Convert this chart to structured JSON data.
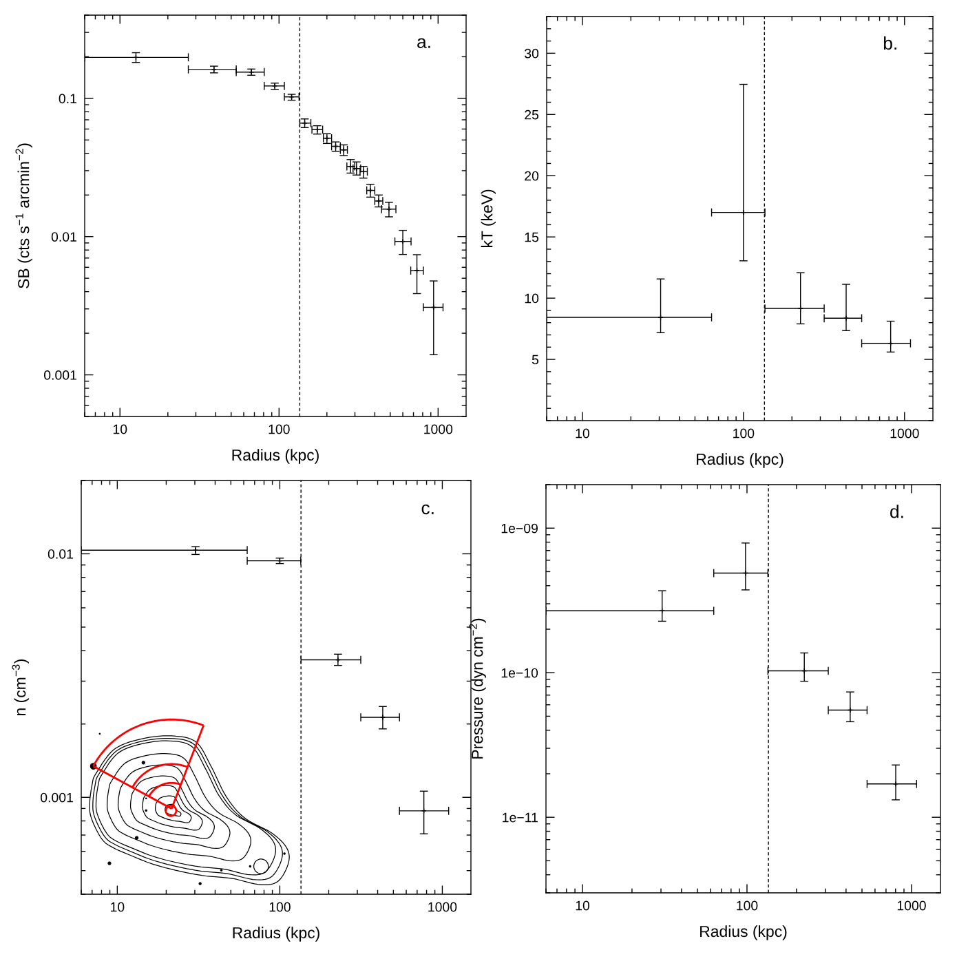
{
  "chart_data": [
    {
      "type": "scatter",
      "xlabel": "Radius (kpc)",
      "ylabel": "SB (cts s$^{−1}$ arcmin$^{−2}$)",
      "annotations": [
        "a."
      ],
      "log": "xy",
      "xlim": [
        6,
        1500
      ],
      "ylim": [
        0.0005,
        0.4
      ],
      "xticks": [
        10,
        100,
        1000
      ],
      "yticks": [
        0.001,
        0.01,
        0.1
      ],
      "marker": "cross",
      "color": "#000000",
      "ref_lines": [
        {
          "axis": "x",
          "value": 135,
          "line_style": "dashed",
          "color": "#000000"
        }
      ],
      "x": [
        12.6,
        39,
        67,
        94,
        120,
        145,
        174,
        200,
        227,
        255,
        282,
        307,
        339,
        375,
        423,
        491,
        600,
        736,
        937
      ],
      "values": [
        0.198,
        0.162,
        0.155,
        0.123,
        0.1025,
        0.0662,
        0.0594,
        0.0515,
        0.045,
        0.0424,
        0.0322,
        0.0311,
        0.0295,
        0.0216,
        0.0181,
        0.0158,
        0.00923,
        0.00568,
        0.00308
      ],
      "errors": [
        [
          0.182,
          0.214
        ],
        [
          0.153,
          0.171
        ],
        [
          0.147,
          0.163
        ],
        [
          0.116,
          0.129
        ],
        [
          0.097,
          0.107
        ],
        [
          0.0615,
          0.071
        ],
        [
          0.0552,
          0.0634
        ],
        [
          0.0472,
          0.0555
        ],
        [
          0.0414,
          0.0484
        ],
        [
          0.0386,
          0.0461
        ],
        [
          0.0288,
          0.0361
        ],
        [
          0.0279,
          0.0347
        ],
        [
          0.0265,
          0.0322
        ],
        [
          0.0193,
          0.0239
        ],
        [
          0.0164,
          0.02
        ],
        [
          0.0139,
          0.0177
        ],
        [
          0.00743,
          0.0111
        ],
        [
          0.00387,
          0.0074
        ],
        [
          0.0014,
          0.00478
        ]
      ],
      "xerrors": [
        [
          6,
          26.9
        ],
        [
          26.9,
          53.8
        ],
        [
          53.8,
          80.7
        ],
        [
          80.7,
          108
        ],
        [
          108,
          133.6
        ],
        [
          135,
          158.5
        ],
        [
          161,
          188
        ],
        [
          190,
          214
        ],
        [
          214,
          243
        ],
        [
          243,
          269
        ],
        [
          267,
          299
        ],
        [
          292,
          326
        ],
        [
          323,
          359
        ],
        [
          356,
          400
        ],
        [
          400,
          449
        ],
        [
          441,
          543
        ],
        [
          535,
          676
        ],
        [
          673,
          808
        ],
        [
          808,
          1074
        ]
      ]
    },
    {
      "type": "scatter",
      "xlabel": "Radius (kpc)",
      "ylabel": "kT (keV)",
      "annotations": [
        "b."
      ],
      "log": "x",
      "xlim": [
        6,
        1500
      ],
      "ylim": [
        0,
        33
      ],
      "xticks": [
        10,
        100,
        1000
      ],
      "yticks": [
        5,
        10,
        15,
        20,
        25,
        30
      ],
      "marker": "cross",
      "color": "#000000",
      "ref_lines": [
        {
          "axis": "x",
          "value": 135,
          "line_style": "dashed",
          "color": "#000000"
        }
      ],
      "x": [
        30.6,
        100,
        226,
        434,
        820
      ],
      "values": [
        8.43,
        17.0,
        9.16,
        8.36,
        6.31
      ],
      "errors": [
        [
          7.18,
          11.57
        ],
        [
          13.05,
          27.46
        ],
        [
          7.9,
          12.08
        ],
        [
          7.35,
          11.13
        ],
        [
          5.6,
          8.12
        ]
      ],
      "xerrors": [
        [
          6,
          63.4
        ],
        [
          63.4,
          136
        ],
        [
          136,
          317
        ],
        [
          317,
          542
        ],
        [
          542,
          1089
        ]
      ]
    },
    {
      "type": "scatter",
      "xlabel": "Radius (kpc)",
      "ylabel": "n (cm$^{−3}$)",
      "annotations": [
        "c."
      ],
      "log": "xy",
      "xlim": [
        6,
        1500
      ],
      "ylim": [
        0.0004,
        0.02
      ],
      "xticks": [
        10,
        100,
        1000
      ],
      "yticks": [
        0.001,
        0.01
      ],
      "marker": "cross",
      "color": "#000000",
      "ref_lines": [
        {
          "axis": "x",
          "value": 135,
          "line_style": "dashed",
          "color": "#000000"
        }
      ],
      "x": [
        30.3,
        100,
        228,
        430,
        770
      ],
      "values": [
        0.01035,
        0.00936,
        0.00367,
        0.00213,
        0.00088
      ],
      "errors": [
        [
          0.00994,
          0.0107
        ],
        [
          0.00912,
          0.0096
        ],
        [
          0.00348,
          0.00387
        ],
        [
          0.00191,
          0.00236
        ],
        [
          0.000708,
          0.00106
        ]
      ],
      "xerrors": [
        [
          6,
          63
        ],
        [
          63,
          134.6
        ],
        [
          135,
          315
        ],
        [
          315,
          545
        ],
        [
          545,
          1094
        ]
      ]
    },
    {
      "type": "scatter",
      "xlabel": "Radius (kpc)",
      "ylabel": "Pressure (dyn cm$^{−2}$)",
      "annotations": [
        "d."
      ],
      "log": "xy",
      "xlim": [
        6,
        1500
      ],
      "ylim": [
        3e-12,
        2e-09
      ],
      "xticks": [
        10,
        100,
        1000
      ],
      "yticks": [
        {
          "value": 1e-11,
          "label": "1e−11"
        },
        {
          "value": 1e-10,
          "label": "1e−10"
        },
        {
          "value": 1e-09,
          "label": "1e−09"
        }
      ],
      "marker": "cross",
      "color": "#000000",
      "ref_lines": [
        {
          "axis": "x",
          "value": 135,
          "line_style": "dashed",
          "color": "#000000"
        }
      ],
      "x": [
        30.5,
        98,
        223,
        424,
        802
      ],
      "values": [
        2.68e-10,
        4.89e-10,
        1.03e-10,
        5.51e-11,
        1.7e-11
      ],
      "errors": [
        [
          2.27e-10,
          3.69e-10
        ],
        [
          3.74e-10,
          7.89e-10
        ],
        [
          8.73e-11,
          1.37e-10
        ],
        [
          4.58e-11,
          7.36e-11
        ],
        [
          1.32e-11,
          2.3e-11
        ]
      ],
      "xerrors": [
        [
          6,
          62.8
        ],
        [
          62.8,
          134
        ],
        [
          134,
          312
        ],
        [
          312,
          537
        ],
        [
          537,
          1074
        ]
      ]
    }
  ]
}
